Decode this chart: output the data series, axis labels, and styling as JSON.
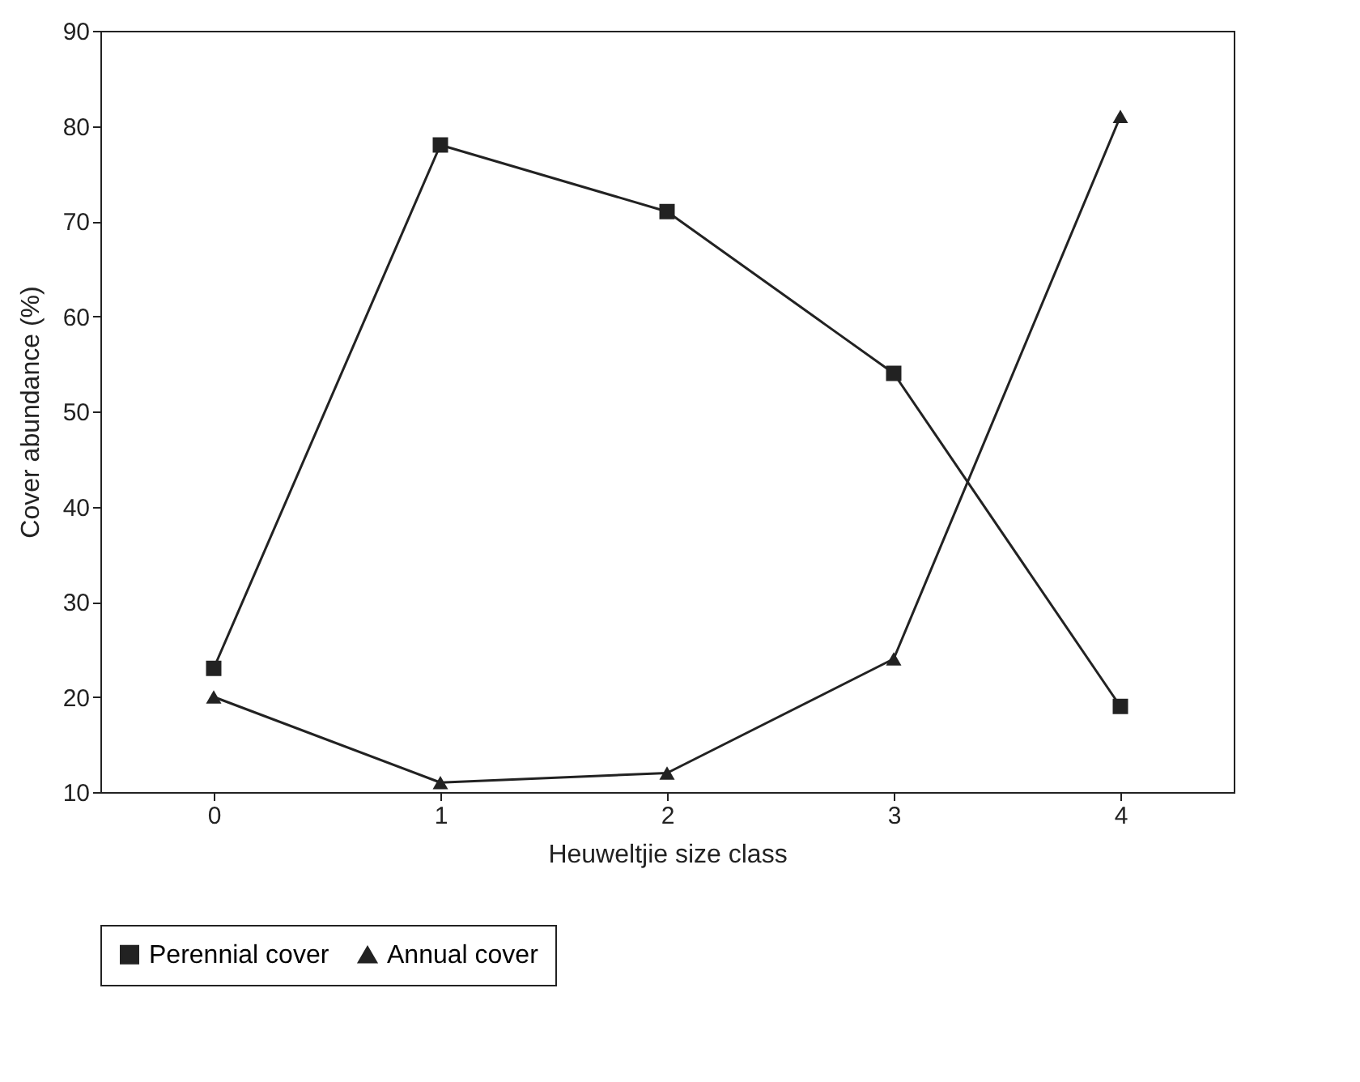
{
  "chart_data": {
    "type": "line",
    "xlabel": "Heuweltjie size class",
    "ylabel": "Cover abundance (%)",
    "x": [
      0,
      1,
      2,
      3,
      4
    ],
    "series": [
      {
        "name": "Perennial cover",
        "color": "#222222",
        "marker": "square",
        "values": [
          23,
          78,
          71,
          54,
          19
        ]
      },
      {
        "name": "Annual cover",
        "color": "#222222",
        "marker": "triangle",
        "values": [
          20,
          11,
          12,
          24,
          81
        ]
      }
    ],
    "xlim": [
      -0.5,
      4.5
    ],
    "xticks": [
      0,
      1,
      2,
      3,
      4
    ],
    "ylim": [
      10,
      90
    ],
    "yticks": [
      10,
      20,
      30,
      40,
      50,
      60,
      70,
      80,
      90
    ],
    "grid": false,
    "legend": "bottom",
    "line_style": "solid"
  }
}
